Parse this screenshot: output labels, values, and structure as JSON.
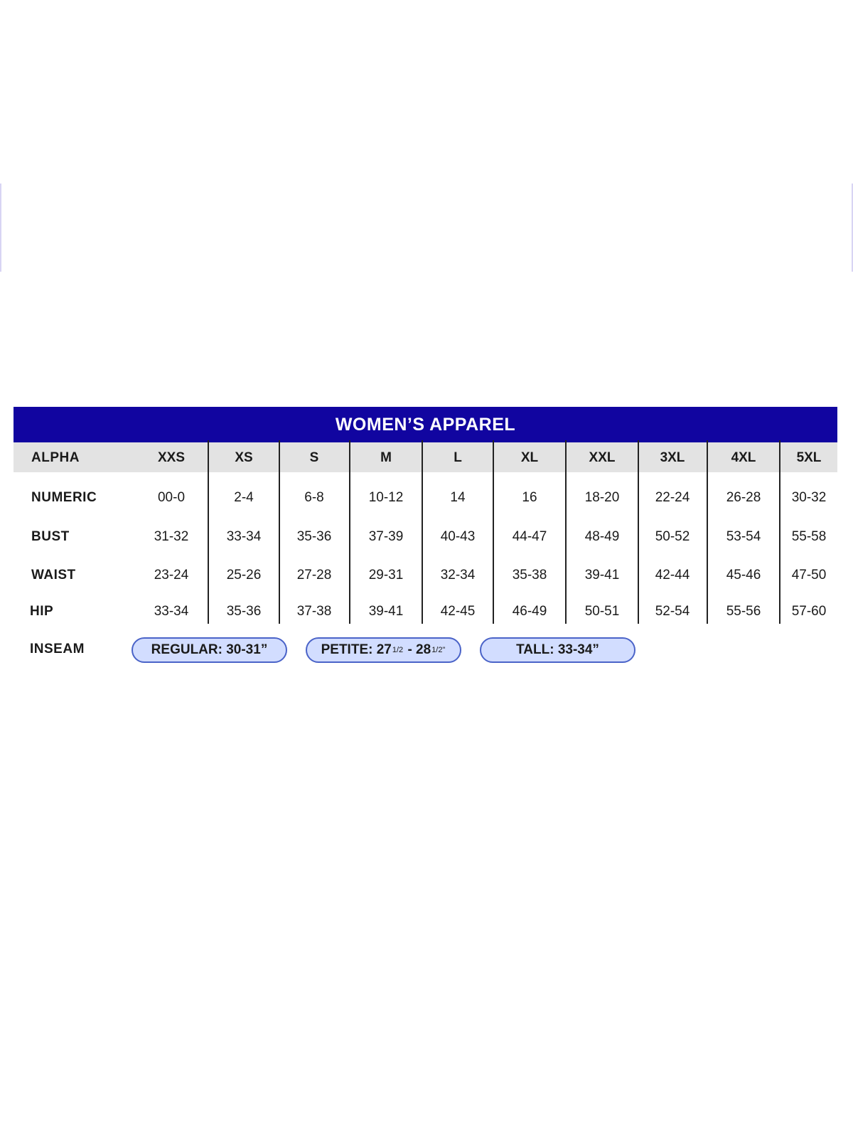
{
  "title": "WOMEN’S APPAREL",
  "colors": {
    "header": "#1105a0",
    "row_header": "#e3e3e3",
    "pill_fill": "#d2ddff",
    "pill_border": "#4a63c8"
  },
  "row_labels": [
    "ALPHA",
    "NUMERIC",
    "BUST",
    "WAIST",
    "HIP",
    "INSEAM"
  ],
  "sizes": [
    "XXS",
    "XS",
    "S",
    "M",
    "L",
    "XL",
    "XXL",
    "3XL",
    "4XL",
    "5XL"
  ],
  "rows": {
    "numeric": [
      "00-0",
      "2-4",
      "6-8",
      "10-12",
      "14",
      "16",
      "18-20",
      "22-24",
      "26-28",
      "30-32"
    ],
    "bust": [
      "31-32",
      "33-34",
      "35-36",
      "37-39",
      "40-43",
      "44-47",
      "48-49",
      "50-52",
      "53-54",
      "55-58"
    ],
    "waist": [
      "23-24",
      "25-26",
      "27-28",
      "29-31",
      "32-34",
      "35-38",
      "39-41",
      "42-44",
      "45-46",
      "47-50"
    ],
    "hip": [
      "33-34",
      "35-36",
      "37-38",
      "39-41",
      "42-45",
      "46-49",
      "50-51",
      "52-54",
      "55-56",
      "57-60"
    ]
  },
  "inseam": {
    "regular": "REGULAR: 30-31”",
    "petite_prefix": "PETITE: 27",
    "petite_frac1": "1/2",
    "petite_mid": "- 28",
    "petite_frac2": "1/2\"",
    "tall": "TALL: 33-34”"
  }
}
